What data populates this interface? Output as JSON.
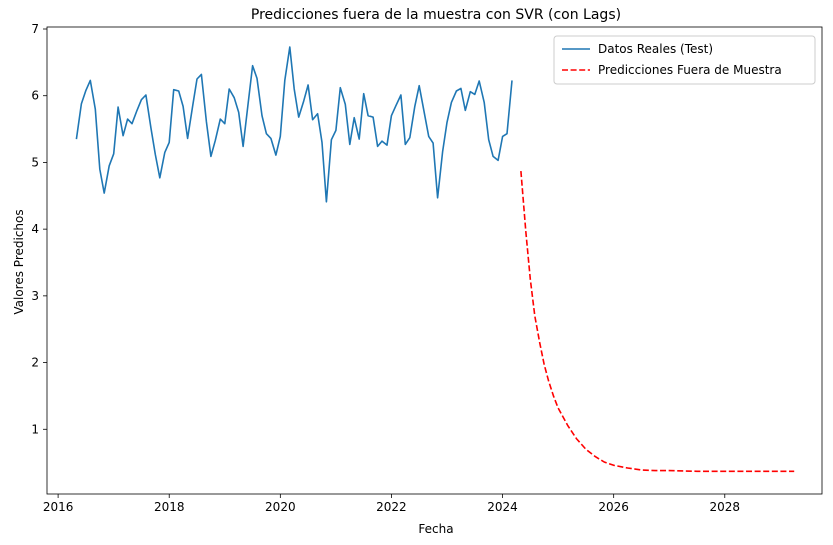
{
  "chart_data": {
    "type": "line",
    "title": "Predicciones fuera de la muestra con SVR (con Lags)",
    "xlabel": "Fecha",
    "ylabel": "Valores Predichos",
    "xlim": [
      2015.8,
      2029.75
    ],
    "ylim": [
      0.03,
      7.03
    ],
    "x_ticks": [
      2016,
      2018,
      2020,
      2022,
      2024,
      2026,
      2028
    ],
    "y_ticks": [
      1,
      2,
      3,
      4,
      5,
      6,
      7
    ],
    "grid": false,
    "legend_position": "top-right",
    "series": [
      {
        "name": "Datos Reales (Test)",
        "color": "#1f77b4",
        "style": "solid",
        "x": [
          2016.33,
          2016.42,
          2016.5,
          2016.58,
          2016.67,
          2016.75,
          2016.83,
          2016.92,
          2017.0,
          2017.08,
          2017.17,
          2017.25,
          2017.33,
          2017.42,
          2017.5,
          2017.58,
          2017.67,
          2017.75,
          2017.83,
          2017.92,
          2018.0,
          2018.08,
          2018.17,
          2018.25,
          2018.33,
          2018.42,
          2018.5,
          2018.58,
          2018.67,
          2018.75,
          2018.83,
          2018.92,
          2019.0,
          2019.08,
          2019.17,
          2019.25,
          2019.33,
          2019.42,
          2019.5,
          2019.58,
          2019.67,
          2019.75,
          2019.83,
          2019.92,
          2020.0,
          2020.08,
          2020.17,
          2020.25,
          2020.33,
          2020.42,
          2020.5,
          2020.58,
          2020.67,
          2020.75,
          2020.83,
          2020.92,
          2021.0,
          2021.08,
          2021.17,
          2021.25,
          2021.33,
          2021.42,
          2021.5,
          2021.58,
          2021.67,
          2021.75,
          2021.83,
          2021.92,
          2022.0,
          2022.08,
          2022.17,
          2022.25,
          2022.33,
          2022.42,
          2022.5,
          2022.58,
          2022.67,
          2022.75,
          2022.83,
          2022.92,
          2023.0,
          2023.08,
          2023.17,
          2023.25,
          2023.33,
          2023.42,
          2023.5,
          2023.58,
          2023.67,
          2023.75,
          2023.83,
          2023.92,
          2024.0,
          2024.08,
          2024.17
        ],
        "y": [
          5.35,
          5.88,
          6.08,
          6.23,
          5.8,
          4.9,
          4.54,
          4.95,
          5.13,
          5.83,
          5.4,
          5.65,
          5.58,
          5.78,
          5.94,
          6.01,
          5.52,
          5.12,
          4.77,
          5.15,
          5.3,
          6.09,
          6.07,
          5.84,
          5.36,
          5.84,
          6.25,
          6.32,
          5.61,
          5.09,
          5.33,
          5.65,
          5.58,
          6.1,
          5.97,
          5.75,
          5.24,
          5.88,
          6.45,
          6.26,
          5.7,
          5.43,
          5.36,
          5.11,
          5.39,
          6.23,
          6.73,
          6.1,
          5.68,
          5.92,
          6.16,
          5.64,
          5.73,
          5.3,
          4.41,
          5.34,
          5.48,
          6.12,
          5.87,
          5.27,
          5.67,
          5.35,
          6.03,
          5.7,
          5.68,
          5.24,
          5.32,
          5.26,
          5.7,
          5.85,
          6.01,
          5.27,
          5.37,
          5.84,
          6.15,
          5.79,
          5.39,
          5.29,
          4.47,
          5.16,
          5.6,
          5.9,
          6.07,
          6.11,
          5.78,
          6.06,
          6.02,
          6.22,
          5.9,
          5.34,
          5.09,
          5.03,
          5.39,
          5.43,
          6.23
        ]
      },
      {
        "name": "Predicciones Fuera de Muestra",
        "color": "#ff0000",
        "style": "dashed",
        "x": [
          2024.33,
          2024.42,
          2024.5,
          2024.58,
          2024.67,
          2024.75,
          2024.83,
          2024.92,
          2025.0,
          2025.17,
          2025.33,
          2025.5,
          2025.67,
          2025.83,
          2026.0,
          2026.25,
          2026.5,
          2026.75,
          2027.0,
          2027.5,
          2028.0,
          2028.5,
          2029.0,
          2029.25
        ],
        "y": [
          4.87,
          3.95,
          3.25,
          2.7,
          2.29,
          1.97,
          1.72,
          1.49,
          1.32,
          1.06,
          0.86,
          0.7,
          0.59,
          0.51,
          0.46,
          0.42,
          0.39,
          0.38,
          0.38,
          0.37,
          0.37,
          0.37,
          0.37,
          0.37
        ]
      }
    ]
  }
}
